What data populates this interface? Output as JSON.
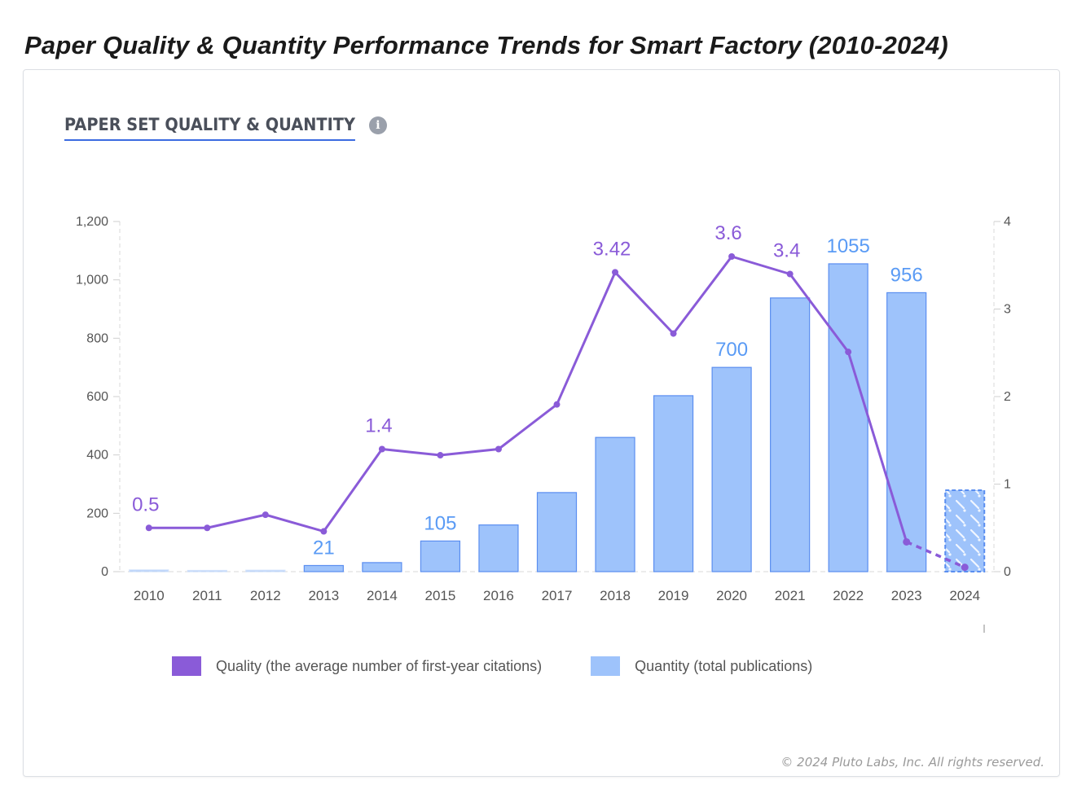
{
  "page": {
    "title": "Paper Quality & Quantity Performance Trends for Smart Factory (2010-2024)"
  },
  "card": {
    "section_title": "PAPER SET QUALITY & QUANTITY",
    "info_icon": "info-icon",
    "info_glyph": "i",
    "copyright": "© 2024 Pluto Labs, Inc. All rights reserved."
  },
  "colors": {
    "quality": "#8a5bd8",
    "quantity_fill": "#9ec3fb",
    "quantity_stroke": "#5a8ef0",
    "quantity_label": "#5a9bf5",
    "accent_underline": "#3b6be0"
  },
  "chart_data": {
    "type": "bar+line",
    "title": "PAPER SET QUALITY & QUANTITY",
    "categories": [
      "2010",
      "2011",
      "2012",
      "2013",
      "2014",
      "2015",
      "2016",
      "2017",
      "2018",
      "2019",
      "2020",
      "2021",
      "2022",
      "2023",
      "2024"
    ],
    "series": [
      {
        "name": "Quantity (total publications)",
        "type": "bar",
        "axis": "left",
        "values": [
          6,
          2,
          5,
          21,
          31,
          105,
          160,
          271,
          460,
          603,
          700,
          938,
          1055,
          956,
          279
        ],
        "labels": {
          "3": "21",
          "5": "105",
          "10": "700",
          "12": "1055",
          "13": "956"
        },
        "projected_index": 14
      },
      {
        "name": "Quality (the average number of first-year citations)",
        "type": "line",
        "axis": "right",
        "values": [
          0.5,
          0.5,
          0.65,
          0.46,
          1.4,
          1.33,
          1.4,
          1.91,
          3.42,
          2.72,
          3.6,
          3.4,
          2.51,
          0.34,
          0.05
        ],
        "labels": {
          "0": "0.5",
          "4": "1.4",
          "8": "3.42",
          "10": "3.6",
          "11": "3.4"
        },
        "dashed_from_index": 13
      }
    ],
    "left_axis": {
      "ylim": [
        0,
        1200
      ],
      "ticks": [
        0,
        200,
        400,
        600,
        800,
        1000,
        1200
      ],
      "tick_labels": [
        "0",
        "200",
        "400",
        "600",
        "800",
        "1,000",
        "1,200"
      ]
    },
    "right_axis": {
      "ylim": [
        0,
        4
      ],
      "ticks": [
        0,
        1,
        2,
        3,
        4
      ],
      "tick_labels": [
        "0",
        "1",
        "2",
        "3",
        "4"
      ]
    },
    "xlabel": "",
    "ylabel": "",
    "grid": false,
    "legend": {
      "placement": "bottom",
      "entries": [
        "Quality (the average number of first-year citations)",
        "Quantity (total publications)"
      ]
    }
  }
}
